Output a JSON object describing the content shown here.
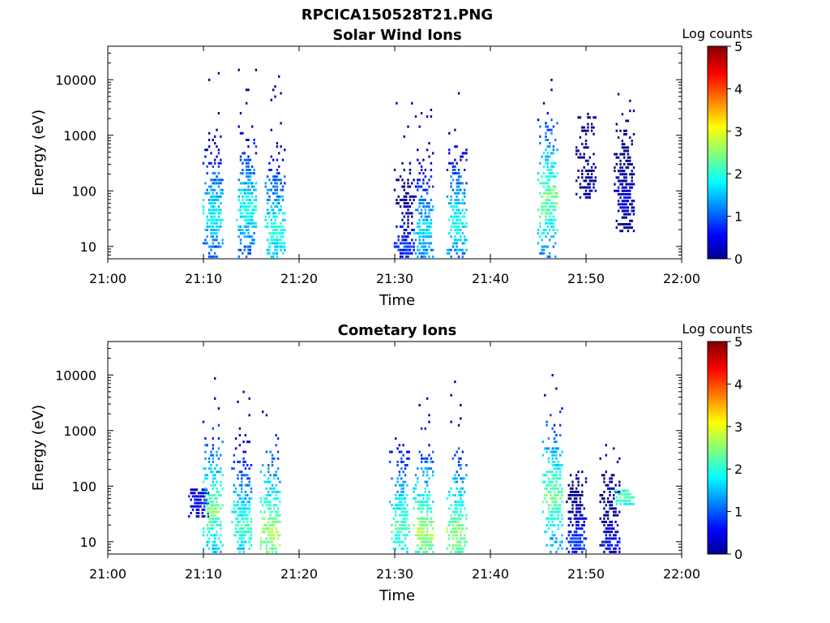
{
  "figure_title": "RPCICA150528T21.PNG",
  "chart_data": [
    {
      "type": "heatmap",
      "title": "Solar Wind Ions",
      "xlabel": "Time",
      "ylabel": "Energy (eV)",
      "x_ticks": [
        "21:00",
        "21:10",
        "21:20",
        "21:30",
        "21:40",
        "21:50",
        "22:00"
      ],
      "x_range": [
        "21:00",
        "22:00"
      ],
      "y_scale": "log",
      "y_ticks": [
        10,
        100,
        1000,
        10000
      ],
      "y_range": [
        6,
        40000
      ],
      "colorbar": {
        "label": "Log counts",
        "range": [
          0,
          5
        ],
        "ticks": [
          0,
          1,
          2,
          3,
          4,
          5
        ],
        "colormap": "jet"
      },
      "bursts": [
        {
          "time": "21:11",
          "e_min": 6,
          "e_max": 14000,
          "peak_log_counts": 2.2,
          "peak_energy": 40
        },
        {
          "time": "21:14.5",
          "e_min": 6,
          "e_max": 20000,
          "peak_log_counts": 2.3,
          "peak_energy": 50
        },
        {
          "time": "21:17.5",
          "e_min": 6,
          "e_max": 16000,
          "peak_log_counts": 2.4,
          "peak_energy": 20
        },
        {
          "time": "21:31",
          "e_min": 6,
          "e_max": 5000,
          "peak_log_counts": 1.2,
          "peak_energy": 10
        },
        {
          "time": "21:33",
          "e_min": 6,
          "e_max": 4000,
          "peak_log_counts": 2.1,
          "peak_energy": 20
        },
        {
          "time": "21:36.5",
          "e_min": 6,
          "e_max": 8000,
          "peak_log_counts": 2.3,
          "peak_energy": 30
        },
        {
          "time": "21:46",
          "e_min": 6,
          "e_max": 16000,
          "peak_log_counts": 2.8,
          "peak_energy": 80
        },
        {
          "time": "21:50",
          "e_min": 80,
          "e_max": 3500,
          "peak_log_counts": 0.6,
          "peak_energy": 80
        },
        {
          "time": "21:54",
          "e_min": 20,
          "e_max": 7000,
          "peak_log_counts": 0.8,
          "peak_energy": 80
        }
      ]
    },
    {
      "type": "heatmap",
      "title": "Cometary Ions",
      "xlabel": "Time",
      "ylabel": "Energy (eV)",
      "x_ticks": [
        "21:00",
        "21:10",
        "21:20",
        "21:30",
        "21:40",
        "21:50",
        "22:00"
      ],
      "x_range": [
        "21:00",
        "22:00"
      ],
      "y_scale": "log",
      "y_ticks": [
        10,
        100,
        1000,
        10000
      ],
      "y_range": [
        6,
        40000
      ],
      "colorbar": {
        "label": "Log counts",
        "range": [
          0,
          5
        ],
        "ticks": [
          0,
          1,
          2,
          3,
          4,
          5
        ],
        "colormap": "jet"
      },
      "bursts": [
        {
          "time": "21:09.5",
          "e_min": 30,
          "e_max": 100,
          "peak_log_counts": 1.0,
          "peak_energy": 50
        },
        {
          "time": "21:11",
          "e_min": 6,
          "e_max": 10000,
          "peak_log_counts": 2.8,
          "peak_energy": 40
        },
        {
          "time": "21:14",
          "e_min": 6,
          "e_max": 6000,
          "peak_log_counts": 2.5,
          "peak_energy": 20
        },
        {
          "time": "21:17",
          "e_min": 6,
          "e_max": 3500,
          "peak_log_counts": 3.0,
          "peak_energy": 15
        },
        {
          "time": "21:30.5",
          "e_min": 6,
          "e_max": 1500,
          "peak_log_counts": 2.6,
          "peak_energy": 20
        },
        {
          "time": "21:33",
          "e_min": 6,
          "e_max": 6000,
          "peak_log_counts": 3.0,
          "peak_energy": 15
        },
        {
          "time": "21:36.5",
          "e_min": 6,
          "e_max": 8000,
          "peak_log_counts": 2.9,
          "peak_energy": 15
        },
        {
          "time": "21:46.5",
          "e_min": 6,
          "e_max": 14000,
          "peak_log_counts": 2.8,
          "peak_energy": 70
        },
        {
          "time": "21:49",
          "e_min": 6,
          "e_max": 200,
          "peak_log_counts": 1.2,
          "peak_energy": 10
        },
        {
          "time": "21:52.5",
          "e_min": 6,
          "e_max": 750,
          "peak_log_counts": 0.9,
          "peak_energy": 10
        },
        {
          "time": "21:54",
          "e_min": 50,
          "e_max": 90,
          "peak_log_counts": 2.5,
          "peak_energy": 70
        }
      ]
    }
  ]
}
